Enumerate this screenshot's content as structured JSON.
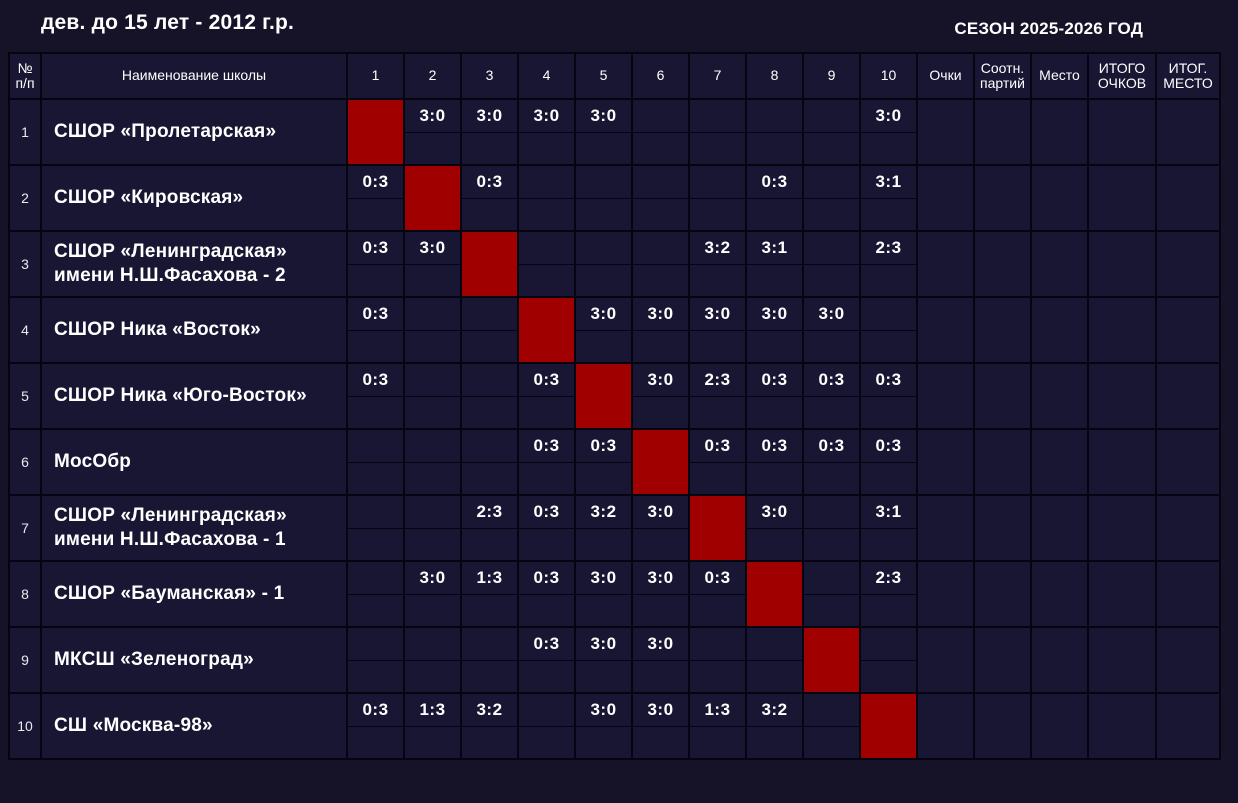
{
  "page": {
    "title": "дев. до 15 лет - 2012 г.р.",
    "season": "СЕЗОН 2025-2026 ГОД"
  },
  "colors": {
    "page_background": "#161329",
    "cell_background": "#191633",
    "diagonal_red": "#a00000",
    "border": "#060410",
    "text": "#ffffff"
  },
  "table": {
    "headers": {
      "num": "№ п/п",
      "school": "Наименование школы",
      "rounds": [
        "1",
        "2",
        "3",
        "4",
        "5",
        "6",
        "7",
        "8",
        "9",
        "10"
      ],
      "points": "Очки",
      "ratio": "Соотн. партий",
      "place": "Место",
      "total_points": "ИТОГО ОЧКОВ",
      "final_place": "ИТОГ. МЕСТО"
    },
    "teams": [
      {
        "num": "1",
        "name": "СШОР «Пролетарская»",
        "scores": [
          null,
          "3:0",
          "3:0",
          "3:0",
          "3:0",
          "",
          "",
          "",
          "",
          "3:0"
        ],
        "points": "",
        "ratio": "",
        "place": "",
        "total_points": "",
        "final_place": ""
      },
      {
        "num": "2",
        "name": "СШОР «Кировская»",
        "scores": [
          "0:3",
          null,
          "0:3",
          "",
          "",
          "",
          "",
          "0:3",
          "",
          "3:1"
        ],
        "points": "",
        "ratio": "",
        "place": "",
        "total_points": "",
        "final_place": ""
      },
      {
        "num": "3",
        "name": "СШОР «Ленинградская» имени Н.Ш.Фасахова - 2",
        "scores": [
          "0:3",
          "3:0",
          null,
          "",
          "",
          "",
          "3:2",
          "3:1",
          "",
          "2:3"
        ],
        "points": "",
        "ratio": "",
        "place": "",
        "total_points": "",
        "final_place": ""
      },
      {
        "num": "4",
        "name": "СШОР Ника «Восток»",
        "scores": [
          "0:3",
          "",
          "",
          null,
          "3:0",
          "3:0",
          "3:0",
          "3:0",
          "3:0",
          ""
        ],
        "points": "",
        "ratio": "",
        "place": "",
        "total_points": "",
        "final_place": ""
      },
      {
        "num": "5",
        "name": "СШОР Ника «Юго-Восток»",
        "scores": [
          "0:3",
          "",
          "",
          "0:3",
          null,
          "3:0",
          "2:3",
          "0:3",
          "0:3",
          "0:3"
        ],
        "points": "",
        "ratio": "",
        "place": "",
        "total_points": "",
        "final_place": ""
      },
      {
        "num": "6",
        "name": "МосОбр",
        "scores": [
          "",
          "",
          "",
          "0:3",
          "0:3",
          null,
          "0:3",
          "0:3",
          "0:3",
          "0:3"
        ],
        "points": "",
        "ratio": "",
        "place": "",
        "total_points": "",
        "final_place": ""
      },
      {
        "num": "7",
        "name": "СШОР «Ленинградская» имени Н.Ш.Фасахова - 1",
        "scores": [
          "",
          "",
          "2:3",
          "0:3",
          "3:2",
          "3:0",
          null,
          "3:0",
          "",
          "3:1"
        ],
        "points": "",
        "ratio": "",
        "place": "",
        "total_points": "",
        "final_place": ""
      },
      {
        "num": "8",
        "name": "СШОР «Бауманская» - 1",
        "scores": [
          "",
          "3:0",
          "1:3",
          "0:3",
          "3:0",
          "3:0",
          "0:3",
          null,
          "",
          "2:3"
        ],
        "points": "",
        "ratio": "",
        "place": "",
        "total_points": "",
        "final_place": ""
      },
      {
        "num": "9",
        "name": "МКСШ «Зеленоград»",
        "scores": [
          "",
          "",
          "",
          "0:3",
          "3:0",
          "3:0",
          "",
          "",
          null,
          ""
        ],
        "points": "",
        "ratio": "",
        "place": "",
        "total_points": "",
        "final_place": ""
      },
      {
        "num": "10",
        "name": "СШ «Москва-98»",
        "scores": [
          "0:3",
          "1:3",
          "3:2",
          "",
          "3:0",
          "3:0",
          "1:3",
          "3:2",
          "",
          null
        ],
        "points": "",
        "ratio": "",
        "place": "",
        "total_points": "",
        "final_place": ""
      }
    ]
  }
}
